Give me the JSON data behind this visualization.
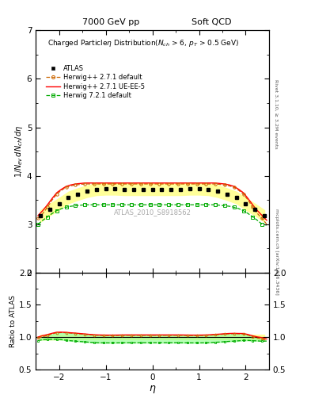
{
  "title_left": "7000 GeV pp",
  "title_right": "Soft QCD",
  "right_label_top": "Rivet 3.1.10, ≥ 3.2M events",
  "right_label_bottom": "mcplots.cern.ch [arXiv:1306.3436]",
  "watermark": "ATLAS_2010_S8918562",
  "xlim": [
    -2.5,
    2.5
  ],
  "ylim_main": [
    2.0,
    7.0
  ],
  "ylim_ratio": [
    0.5,
    2.0
  ],
  "atlas_eta": [
    -2.4,
    -2.2,
    -2.0,
    -1.8,
    -1.6,
    -1.4,
    -1.2,
    -1.0,
    -0.8,
    -0.6,
    -0.4,
    -0.2,
    0.0,
    0.2,
    0.4,
    0.6,
    0.8,
    1.0,
    1.2,
    1.4,
    1.6,
    1.8,
    2.0,
    2.2,
    2.4
  ],
  "atlas_vals": [
    3.17,
    3.3,
    3.42,
    3.55,
    3.62,
    3.68,
    3.72,
    3.73,
    3.73,
    3.72,
    3.72,
    3.72,
    3.72,
    3.72,
    3.72,
    3.72,
    3.73,
    3.73,
    3.72,
    3.68,
    3.62,
    3.55,
    3.42,
    3.3,
    3.17
  ],
  "atlas_err": [
    0.12,
    0.12,
    0.12,
    0.12,
    0.12,
    0.12,
    0.12,
    0.12,
    0.12,
    0.12,
    0.12,
    0.12,
    0.12,
    0.12,
    0.12,
    0.12,
    0.12,
    0.12,
    0.12,
    0.12,
    0.12,
    0.12,
    0.12,
    0.12,
    0.12
  ],
  "hw271_eta": [
    -2.45,
    -2.35,
    -2.25,
    -2.15,
    -2.05,
    -1.95,
    -1.85,
    -1.75,
    -1.65,
    -1.55,
    -1.45,
    -1.35,
    -1.25,
    -1.15,
    -1.05,
    -0.95,
    -0.85,
    -0.75,
    -0.65,
    -0.55,
    -0.45,
    -0.35,
    -0.25,
    -0.15,
    -0.05,
    0.05,
    0.15,
    0.25,
    0.35,
    0.45,
    0.55,
    0.65,
    0.75,
    0.85,
    0.95,
    1.05,
    1.15,
    1.25,
    1.35,
    1.45,
    1.55,
    1.65,
    1.75,
    1.85,
    1.95,
    2.05,
    2.15,
    2.25,
    2.35,
    2.45
  ],
  "hw271_vals": [
    3.12,
    3.22,
    3.35,
    3.5,
    3.62,
    3.7,
    3.76,
    3.79,
    3.81,
    3.82,
    3.83,
    3.83,
    3.83,
    3.83,
    3.83,
    3.83,
    3.83,
    3.83,
    3.83,
    3.83,
    3.83,
    3.83,
    3.83,
    3.83,
    3.83,
    3.83,
    3.83,
    3.83,
    3.83,
    3.83,
    3.83,
    3.83,
    3.83,
    3.83,
    3.83,
    3.83,
    3.83,
    3.83,
    3.83,
    3.82,
    3.81,
    3.79,
    3.76,
    3.7,
    3.62,
    3.5,
    3.35,
    3.22,
    3.12,
    3.0
  ],
  "hw271ue_eta": [
    -2.45,
    -2.35,
    -2.25,
    -2.15,
    -2.05,
    -1.95,
    -1.85,
    -1.75,
    -1.65,
    -1.55,
    -1.45,
    -1.35,
    -1.25,
    -1.15,
    -1.05,
    -0.95,
    -0.85,
    -0.75,
    -0.65,
    -0.55,
    -0.45,
    -0.35,
    -0.25,
    -0.15,
    -0.05,
    0.05,
    0.15,
    0.25,
    0.35,
    0.45,
    0.55,
    0.65,
    0.75,
    0.85,
    0.95,
    1.05,
    1.15,
    1.25,
    1.35,
    1.45,
    1.55,
    1.65,
    1.75,
    1.85,
    1.95,
    2.05,
    2.15,
    2.25,
    2.35,
    2.45
  ],
  "hw271ue_vals": [
    3.18,
    3.28,
    3.4,
    3.53,
    3.65,
    3.72,
    3.78,
    3.81,
    3.83,
    3.84,
    3.85,
    3.85,
    3.85,
    3.85,
    3.85,
    3.85,
    3.85,
    3.85,
    3.85,
    3.85,
    3.85,
    3.85,
    3.85,
    3.85,
    3.85,
    3.85,
    3.85,
    3.85,
    3.85,
    3.85,
    3.85,
    3.85,
    3.85,
    3.85,
    3.85,
    3.85,
    3.85,
    3.85,
    3.85,
    3.84,
    3.83,
    3.81,
    3.78,
    3.72,
    3.65,
    3.53,
    3.4,
    3.28,
    3.18,
    3.08
  ],
  "hw721_eta": [
    -2.45,
    -2.35,
    -2.25,
    -2.15,
    -2.05,
    -1.95,
    -1.85,
    -1.75,
    -1.65,
    -1.55,
    -1.45,
    -1.35,
    -1.25,
    -1.15,
    -1.05,
    -0.95,
    -0.85,
    -0.75,
    -0.65,
    -0.55,
    -0.45,
    -0.35,
    -0.25,
    -0.15,
    -0.05,
    0.05,
    0.15,
    0.25,
    0.35,
    0.45,
    0.55,
    0.65,
    0.75,
    0.85,
    0.95,
    1.05,
    1.15,
    1.25,
    1.35,
    1.45,
    1.55,
    1.65,
    1.75,
    1.85,
    1.95,
    2.05,
    2.15,
    2.25,
    2.35,
    2.45
  ],
  "hw721_vals": [
    3.0,
    3.08,
    3.15,
    3.22,
    3.28,
    3.32,
    3.35,
    3.37,
    3.38,
    3.39,
    3.4,
    3.4,
    3.4,
    3.4,
    3.4,
    3.4,
    3.4,
    3.4,
    3.4,
    3.4,
    3.4,
    3.4,
    3.4,
    3.4,
    3.4,
    3.4,
    3.4,
    3.4,
    3.4,
    3.4,
    3.4,
    3.4,
    3.4,
    3.4,
    3.4,
    3.4,
    3.4,
    3.4,
    3.4,
    3.39,
    3.38,
    3.37,
    3.35,
    3.32,
    3.28,
    3.22,
    3.15,
    3.08,
    3.0,
    2.98
  ],
  "atlas_color": "black",
  "hw271_color": "#cc6600",
  "hw271ue_color": "red",
  "hw721_color": "#00aa00",
  "atlas_band_color": "#ffff99",
  "ratio_band_color": "#ffff99",
  "green_band_color": "#99ff99"
}
